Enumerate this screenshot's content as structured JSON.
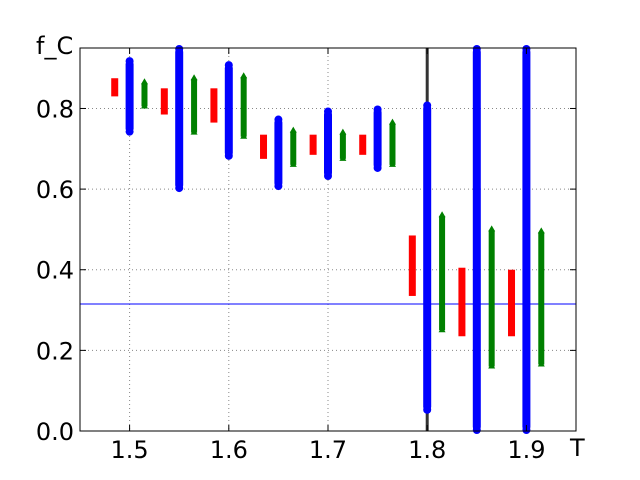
{
  "chart_data": {
    "type": "scatter",
    "title": "",
    "xlabel": "T",
    "ylabel": "f_C",
    "xlim": [
      1.45,
      1.95
    ],
    "ylim": [
      0.0,
      0.95
    ],
    "grid": true,
    "x_ticks": [
      1.5,
      1.6,
      1.7,
      1.8,
      1.9
    ],
    "x_tick_labels": [
      "1.5",
      "1.6",
      "1.7",
      "1.8",
      "1.9"
    ],
    "y_ticks": [
      0.0,
      0.2,
      0.4,
      0.6,
      0.8
    ],
    "y_tick_labels": [
      "0.0",
      "0.2",
      "0.4",
      "0.6",
      "0.8"
    ],
    "reference_lines": [
      {
        "orientation": "horizontal",
        "value": 0.315,
        "color": "#0000ff"
      },
      {
        "orientation": "vertical",
        "value": 1.8,
        "color": "#333333"
      }
    ],
    "series": [
      {
        "color": "#ff0000",
        "marker": "square",
        "ranges": [
          {
            "x": 1.485,
            "min": 0.83,
            "max": 0.875
          },
          {
            "x": 1.535,
            "min": 0.785,
            "max": 0.85
          },
          {
            "x": 1.585,
            "min": 0.765,
            "max": 0.85
          },
          {
            "x": 1.635,
            "min": 0.675,
            "max": 0.735
          },
          {
            "x": 1.685,
            "min": 0.685,
            "max": 0.735
          },
          {
            "x": 1.735,
            "min": 0.685,
            "max": 0.735
          },
          {
            "x": 1.785,
            "min": 0.335,
            "max": 0.485
          },
          {
            "x": 1.835,
            "min": 0.235,
            "max": 0.405
          },
          {
            "x": 1.885,
            "min": 0.235,
            "max": 0.4
          }
        ]
      },
      {
        "color": "#0000ff",
        "marker": "circle",
        "ranges": [
          {
            "x": 1.5,
            "min": 0.74,
            "max": 0.92
          },
          {
            "x": 1.55,
            "min": 0.6,
            "max": 0.95
          },
          {
            "x": 1.6,
            "min": 0.68,
            "max": 0.91
          },
          {
            "x": 1.65,
            "min": 0.605,
            "max": 0.775
          },
          {
            "x": 1.7,
            "min": 0.63,
            "max": 0.795
          },
          {
            "x": 1.75,
            "min": 0.65,
            "max": 0.8
          },
          {
            "x": 1.8,
            "min": 0.05,
            "max": 0.81
          },
          {
            "x": 1.85,
            "min": 0.0,
            "max": 0.95
          },
          {
            "x": 1.9,
            "min": 0.0,
            "max": 0.95
          }
        ]
      },
      {
        "color": "#008000",
        "marker": "triangle",
        "ranges": [
          {
            "x": 1.515,
            "min": 0.805,
            "max": 0.87
          },
          {
            "x": 1.565,
            "min": 0.74,
            "max": 0.88
          },
          {
            "x": 1.615,
            "min": 0.73,
            "max": 0.885
          },
          {
            "x": 1.665,
            "min": 0.66,
            "max": 0.75
          },
          {
            "x": 1.715,
            "min": 0.675,
            "max": 0.745
          },
          {
            "x": 1.765,
            "min": 0.66,
            "max": 0.77
          },
          {
            "x": 1.815,
            "min": 0.25,
            "max": 0.54
          },
          {
            "x": 1.865,
            "min": 0.16,
            "max": 0.505
          },
          {
            "x": 1.915,
            "min": 0.165,
            "max": 0.5
          }
        ]
      }
    ]
  }
}
